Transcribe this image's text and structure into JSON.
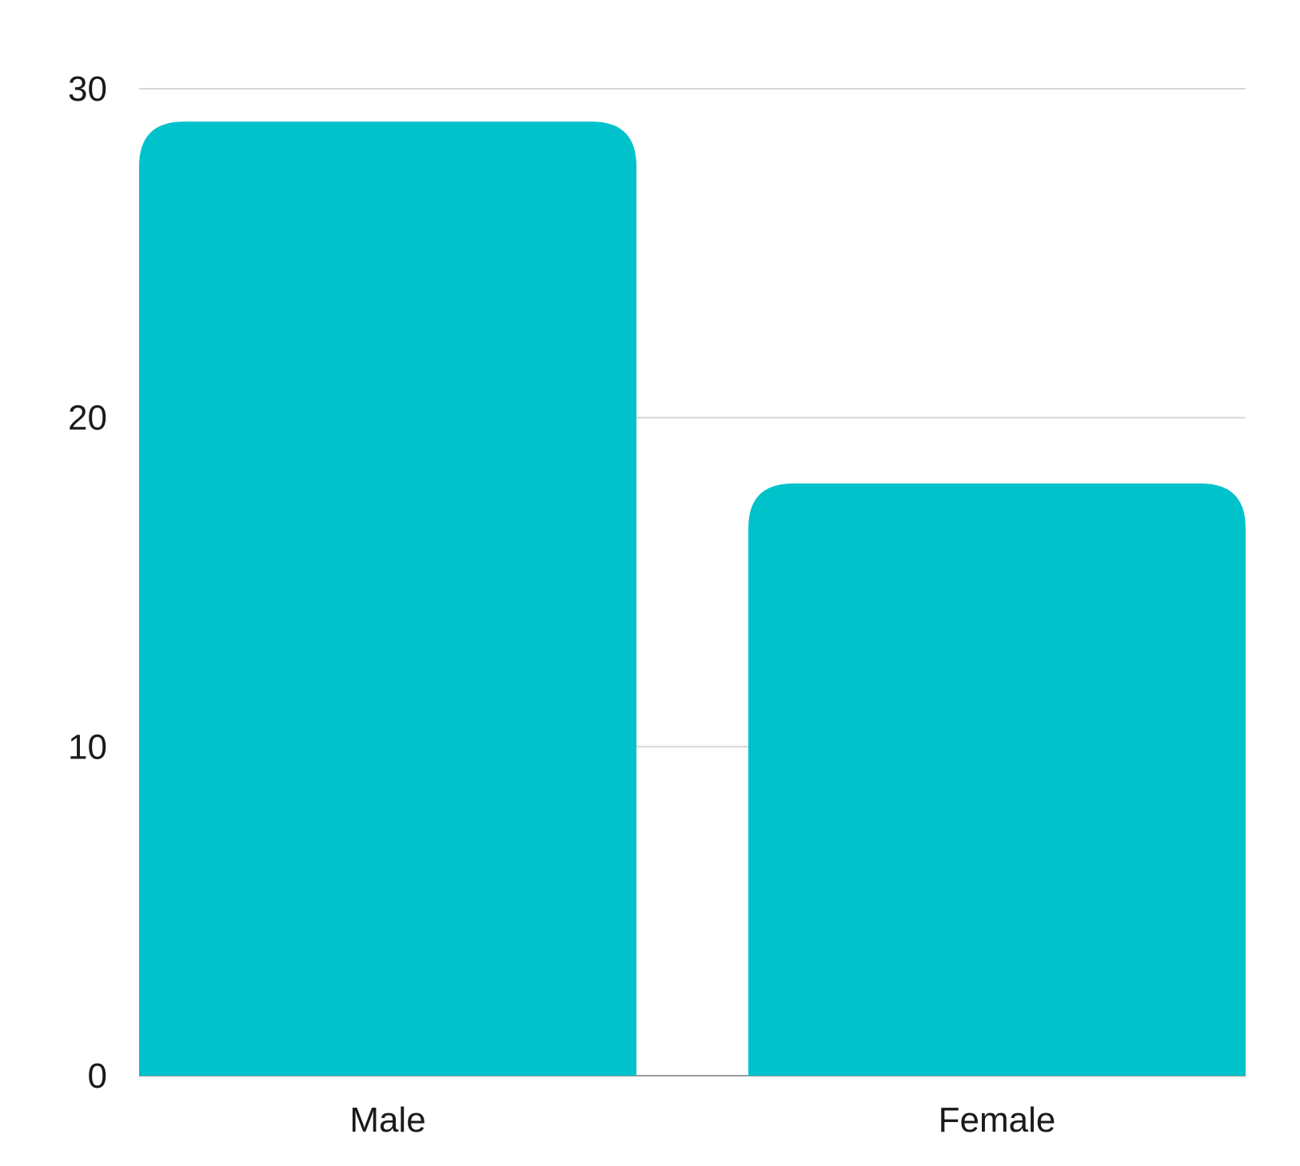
{
  "chart_data": {
    "type": "bar",
    "categories": [
      "Male",
      "Female"
    ],
    "series": [
      {
        "values": [
          29,
          18
        ]
      }
    ],
    "title": "",
    "xlabel": "",
    "ylabel": "",
    "ylim": [
      0,
      30
    ],
    "yticks": [
      0,
      10,
      20,
      30
    ],
    "ytick_labels": [
      "0",
      "10",
      "20",
      "30"
    ],
    "grid": true,
    "legend": "none",
    "bar_color": "#00C2CB"
  }
}
